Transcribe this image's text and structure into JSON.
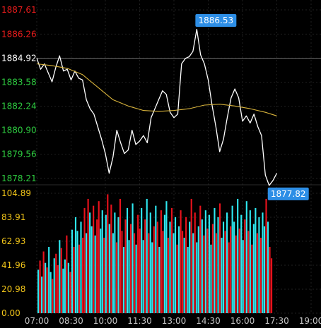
{
  "chart_data": [
    {
      "type": "line",
      "title": "",
      "xlabel": "",
      "ylabel": "",
      "ylim": [
        1878.21,
        1887.61
      ],
      "y_ticks": [
        {
          "label": "1887.61",
          "value": 1887.61,
          "color": "#e81c1c"
        },
        {
          "label": "1886.26",
          "value": 1886.26,
          "color": "#e81c1c"
        },
        {
          "label": "1884.92",
          "value": 1884.92,
          "color": "#ffffff"
        },
        {
          "label": "1883.58",
          "value": 1883.58,
          "color": "#2ecc40"
        },
        {
          "label": "1882.24",
          "value": 1882.24,
          "color": "#2ecc40"
        },
        {
          "label": "1880.90",
          "value": 1880.9,
          "color": "#2ecc40"
        },
        {
          "label": "1879.56",
          "value": 1879.56,
          "color": "#2ecc40"
        },
        {
          "label": "1878.21",
          "value": 1878.21,
          "color": "#2ecc40"
        }
      ],
      "reference_value": 1884.92,
      "high_label": "1886.53",
      "low_label": "1877.82",
      "series": [
        {
          "color": "#ffffff",
          "points": [
            [
              "07:00",
              1884.92
            ],
            [
              "07:10",
              1884.3
            ],
            [
              "07:20",
              1884.6
            ],
            [
              "07:30",
              1884.1
            ],
            [
              "07:40",
              1883.6
            ],
            [
              "07:50",
              1884.4
            ],
            [
              "08:00",
              1885.05
            ],
            [
              "08:10",
              1884.2
            ],
            [
              "08:20",
              1884.3
            ],
            [
              "08:30",
              1883.7
            ],
            [
              "08:40",
              1884.2
            ],
            [
              "08:50",
              1883.8
            ],
            [
              "09:00",
              1883.7
            ],
            [
              "09:10",
              1882.6
            ],
            [
              "09:20",
              1882.1
            ],
            [
              "09:30",
              1881.8
            ],
            [
              "09:40",
              1881.1
            ],
            [
              "09:50",
              1880.4
            ],
            [
              "10:00",
              1879.6
            ],
            [
              "10:10",
              1878.5
            ],
            [
              "10:20",
              1879.4
            ],
            [
              "10:30",
              1880.9
            ],
            [
              "10:40",
              1880.2
            ],
            [
              "10:50",
              1879.6
            ],
            [
              "11:00",
              1879.8
            ],
            [
              "11:10",
              1880.9
            ],
            [
              "11:20",
              1880.1
            ],
            [
              "11:30",
              1880.3
            ],
            [
              "11:40",
              1880.6
            ],
            [
              "11:50",
              1880.2
            ],
            [
              "12:00",
              1881.6
            ],
            [
              "12:10",
              1882.1
            ],
            [
              "12:20",
              1882.6
            ],
            [
              "12:30",
              1883.1
            ],
            [
              "12:40",
              1882.9
            ],
            [
              "12:50",
              1881.9
            ],
            [
              "13:00",
              1881.6
            ],
            [
              "13:10",
              1881.8
            ],
            [
              "13:20",
              1884.6
            ],
            [
              "13:30",
              1884.9
            ],
            [
              "13:40",
              1885.0
            ],
            [
              "13:50",
              1885.3
            ],
            [
              "14:00",
              1886.53
            ],
            [
              "14:10",
              1885.1
            ],
            [
              "14:20",
              1884.6
            ],
            [
              "14:30",
              1883.7
            ],
            [
              "14:40",
              1882.3
            ],
            [
              "14:50",
              1881.1
            ],
            [
              "15:00",
              1879.7
            ],
            [
              "15:10",
              1880.4
            ],
            [
              "15:20",
              1881.6
            ],
            [
              "15:30",
              1882.7
            ],
            [
              "15:40",
              1883.2
            ],
            [
              "15:50",
              1882.7
            ],
            [
              "16:00",
              1881.4
            ],
            [
              "16:10",
              1881.7
            ],
            [
              "16:20",
              1881.3
            ],
            [
              "16:30",
              1881.8
            ],
            [
              "16:40",
              1881.1
            ],
            [
              "16:50",
              1880.6
            ],
            [
              "17:00",
              1878.4
            ],
            [
              "17:10",
              1877.82
            ],
            [
              "17:20",
              1878.1
            ],
            [
              "17:30",
              1878.5
            ]
          ]
        },
        {
          "color": "#d9b43c",
          "points": [
            [
              "07:00",
              1884.6
            ],
            [
              "07:40",
              1884.5
            ],
            [
              "08:20",
              1884.35
            ],
            [
              "09:00",
              1884.0
            ],
            [
              "09:40",
              1883.3
            ],
            [
              "10:20",
              1882.6
            ],
            [
              "11:00",
              1882.25
            ],
            [
              "11:40",
              1882.0
            ],
            [
              "12:20",
              1881.95
            ],
            [
              "13:00",
              1882.0
            ],
            [
              "13:40",
              1882.1
            ],
            [
              "14:20",
              1882.3
            ],
            [
              "15:00",
              1882.35
            ],
            [
              "15:40",
              1882.25
            ],
            [
              "16:20",
              1882.1
            ],
            [
              "17:00",
              1881.9
            ],
            [
              "17:30",
              1881.7
            ]
          ]
        }
      ]
    },
    {
      "type": "bar",
      "title": "",
      "xlabel": "",
      "ylabel": "",
      "ylim": [
        0,
        104.89
      ],
      "y_ticks": [
        "104.89",
        "83.91",
        "62.93",
        "41.96",
        "20.98",
        "0.00"
      ],
      "y_tick_color": "#f0c419",
      "x_ticks": [
        "07:00",
        "08:30",
        "10:00",
        "11:30",
        "13:00",
        "14:30",
        "16:00",
        "17:30",
        "19:00"
      ],
      "x_range": [
        "07:00",
        "19:00"
      ],
      "data_end": "17:30",
      "colors": {
        "up": "#2ee8f0",
        "down": "#e8121c"
      },
      "values": [
        38,
        46,
        32,
        54,
        44,
        40,
        58,
        36,
        30,
        48,
        52,
        42,
        64,
        57,
        39,
        47,
        68,
        44,
        36,
        73,
        58,
        84,
        72,
        60,
        80,
        66,
        92,
        70,
        100,
        88,
        76,
        94,
        68,
        82,
        98,
        74,
        90,
        66,
        86,
        104,
        78,
        95,
        70,
        88,
        62,
        84,
        100,
        72,
        58,
        82,
        92,
        64,
        78,
        96,
        70,
        60,
        86,
        74,
        92,
        64,
        82,
        100,
        70,
        88,
        62,
        76,
        94,
        80,
        58,
        90,
        72,
        86,
        98,
        66,
        80,
        92,
        70,
        84,
        60,
        76,
        90,
        72,
        66,
        84,
        58,
        80,
        100,
        70,
        88,
        62,
        76,
        94,
        82,
        68,
        90,
        74,
        86,
        60,
        78,
        92,
        70,
        84,
        96,
        66,
        80,
        72,
        88,
        62,
        76,
        94,
        80,
        68,
        100,
        74,
        86,
        64,
        82,
        98,
        72,
        90,
        60,
        78,
        92,
        70,
        84,
        66,
        88,
        76,
        100,
        80,
        58,
        48
      ],
      "directions": [
        1,
        0,
        1,
        0,
        1,
        0,
        1,
        1,
        0,
        1,
        0,
        0,
        1,
        0,
        1,
        1,
        0,
        1,
        0,
        1,
        0,
        1,
        1,
        0,
        1,
        0,
        0,
        1,
        0,
        1,
        1,
        0,
        1,
        0,
        0,
        1,
        1,
        0,
        1,
        0,
        1,
        0,
        1,
        1,
        0,
        1,
        0,
        0,
        1,
        0,
        1,
        1,
        0,
        1,
        0,
        1,
        0,
        0,
        1,
        1,
        0,
        1,
        0,
        1,
        1,
        0,
        1,
        0,
        1,
        0,
        0,
        1,
        1,
        0,
        1,
        0,
        1,
        1,
        0,
        1,
        0,
        0,
        1,
        0,
        1,
        1,
        0,
        1,
        0,
        1,
        1,
        0,
        1,
        0,
        1,
        0,
        1,
        1,
        0,
        1,
        0,
        1,
        0,
        1,
        1,
        0,
        1,
        0,
        0,
        1,
        1,
        0,
        1,
        0,
        1,
        1,
        0,
        1,
        0,
        1,
        0,
        1,
        1,
        0,
        1,
        0,
        1,
        1,
        0,
        1,
        0,
        0
      ]
    }
  ]
}
